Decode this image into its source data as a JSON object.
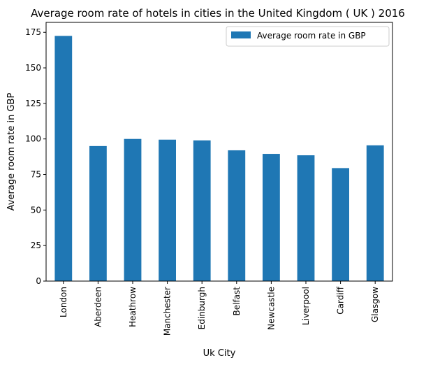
{
  "chart_data": {
    "type": "bar",
    "title": "Average room rate of hotels in cities in the United Kingdom ( UK ) 2016",
    "xlabel": "Uk City",
    "ylabel": "Average room rate in GBP",
    "categories": [
      "London",
      "Aberdeen",
      "Heathrow",
      "Manchester",
      "Edinburgh",
      "Belfast",
      "Newcastle",
      "Liverpool",
      "Cardiff",
      "Glasgow"
    ],
    "series": [
      {
        "name": "Average room rate in GBP",
        "values": [
          172.5,
          95,
          100,
          99.5,
          99,
          92,
          89.5,
          88.5,
          79.5,
          95.5
        ],
        "color": "#1f77b4"
      }
    ],
    "yticks": [
      "0",
      "25",
      "50",
      "75",
      "100",
      "125",
      "150",
      "175"
    ],
    "ylim": [
      0,
      182
    ],
    "grid": false,
    "legend_position": "top-right"
  }
}
